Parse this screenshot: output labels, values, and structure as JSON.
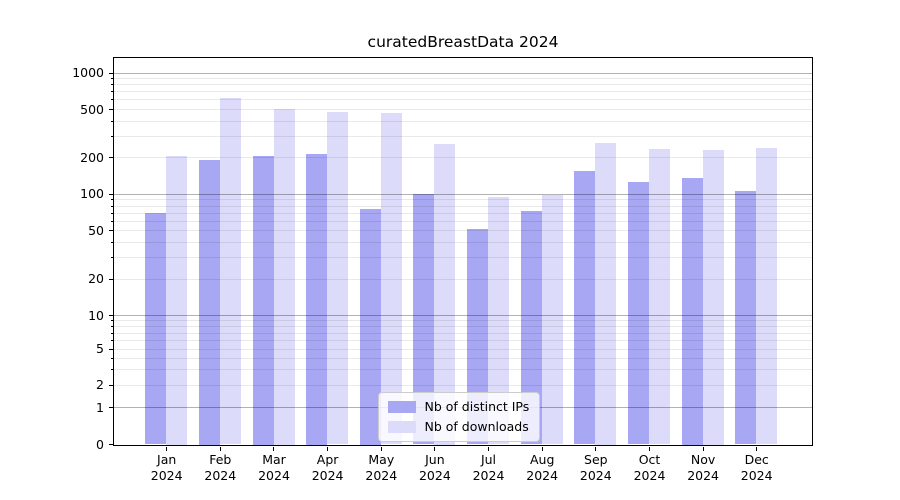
{
  "title": "curatedBreastData 2024",
  "legend": {
    "items": [
      {
        "label": "Nb of distinct IPs",
        "color": "#a7a7f4"
      },
      {
        "label": "Nb of downloads",
        "color": "#dcdcfa"
      }
    ]
  },
  "chart_data": {
    "type": "bar",
    "title": "curatedBreastData 2024",
    "categories": [
      "Jan",
      "Feb",
      "Mar",
      "Apr",
      "May",
      "Jun",
      "Jul",
      "Aug",
      "Sep",
      "Oct",
      "Nov",
      "Dec"
    ],
    "year_label": "2024",
    "series": [
      {
        "name": "Nb of distinct IPs",
        "color": "#a7a7f4",
        "values": [
          70,
          190,
          205,
          215,
          75,
          99,
          51,
          72,
          155,
          125,
          135,
          105
        ]
      },
      {
        "name": "Nb of downloads",
        "color": "#dcdcfa",
        "values": [
          205,
          620,
          500,
          470,
          460,
          260,
          95,
          98,
          265,
          235,
          230,
          240
        ]
      }
    ],
    "xlabel": "",
    "ylabel": "",
    "yscale": "log with zero baseline",
    "yticks": [
      0,
      1,
      2,
      5,
      10,
      20,
      50,
      100,
      200,
      500,
      1000
    ],
    "ylim": [
      0,
      1350
    ],
    "grid": true,
    "legend_position": "lower center",
    "colors": {
      "major_grid": "#b3b3b3",
      "minor_grid": "#e8e8e8",
      "spine": "#000000",
      "background": "#ffffff"
    }
  }
}
